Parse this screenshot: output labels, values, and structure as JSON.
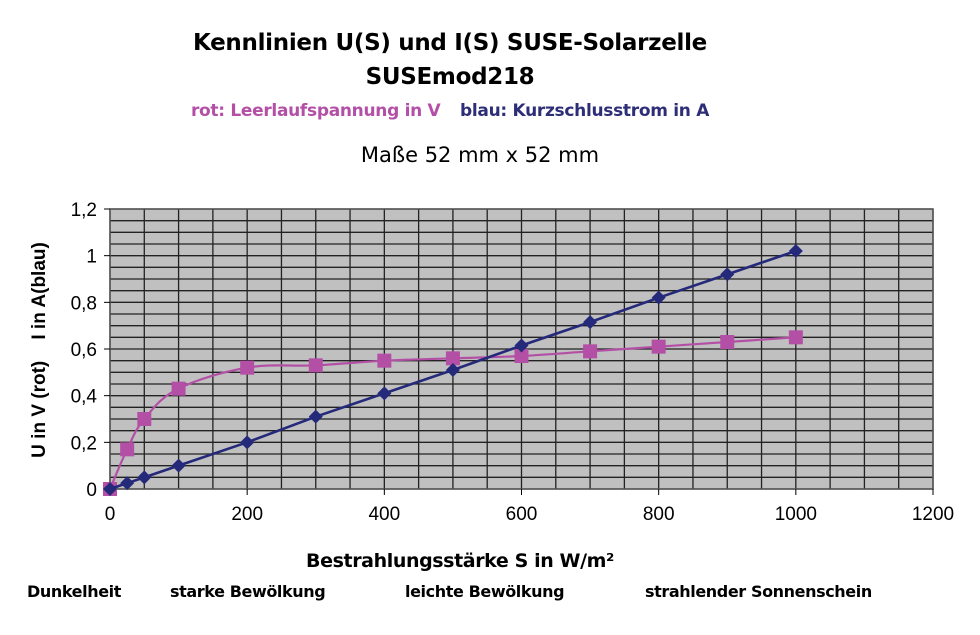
{
  "header": {
    "title_line1": "Kennlinien U(S) und I(S)   SUSE-Solarzelle",
    "title_line2": "SUSEmod218",
    "legend_red": "rot: Leerlaufspannung in V",
    "legend_blue": "blau: Kurzschlusstrom in A",
    "dimensions": "Maße 52 mm x 52 mm"
  },
  "axes": {
    "ylabel": "U in V (rot)    I in A(blau)",
    "xlabel": "Bestrahlungsstärke S in W/m²",
    "yticks": [
      "0",
      "0,2",
      "0,4",
      "0,6",
      "0,8",
      "1",
      "1,2"
    ],
    "xticks": [
      "0",
      "200",
      "400",
      "600",
      "800",
      "1000",
      "1200"
    ]
  },
  "conditions": [
    {
      "label": "Dunkelheit",
      "x": 27
    },
    {
      "label": "starke Bewölkung",
      "x": 170
    },
    {
      "label": "leichte Bewölkung",
      "x": 405
    },
    {
      "label": "strahlender Sonnenschein",
      "x": 645
    }
  ],
  "colors": {
    "red_series": "#b44fa6",
    "blue_series": "#24297a",
    "plot_bg": "#c0c0c0",
    "grid": "#1a1a1a"
  },
  "chart_data": {
    "type": "line",
    "title": "Kennlinien U(S) und I(S)   SUSE-Solarzelle SUSEmod218",
    "subtitle": "rot: Leerlaufspannung in V   blau: Kurzschlusstrom in A",
    "xlabel": "Bestrahlungsstärke S in W/m²",
    "ylabel": "U in V (rot)    I in A(blau)",
    "xlim": [
      0,
      1200
    ],
    "ylim": [
      0,
      1.2
    ],
    "grid": true,
    "legend_position": "top (as subtitle text)",
    "series": [
      {
        "name": "Leerlaufspannung U in V (rot)",
        "marker": "square",
        "color": "#b44fa6",
        "x": [
          0,
          25,
          50,
          100,
          200,
          300,
          400,
          500,
          600,
          700,
          800,
          900,
          1000
        ],
        "values": [
          0,
          0.17,
          0.3,
          0.43,
          0.52,
          0.53,
          0.55,
          0.56,
          0.57,
          0.59,
          0.61,
          0.63,
          0.65
        ]
      },
      {
        "name": "Kurzschlusstrom I in A (blau)",
        "marker": "diamond",
        "color": "#24297a",
        "x": [
          0,
          25,
          50,
          100,
          200,
          300,
          400,
          500,
          600,
          700,
          800,
          900,
          1000
        ],
        "values": [
          0,
          0.025,
          0.05,
          0.1,
          0.2,
          0.31,
          0.41,
          0.51,
          0.615,
          0.715,
          0.82,
          0.92,
          1.02
        ]
      }
    ]
  }
}
